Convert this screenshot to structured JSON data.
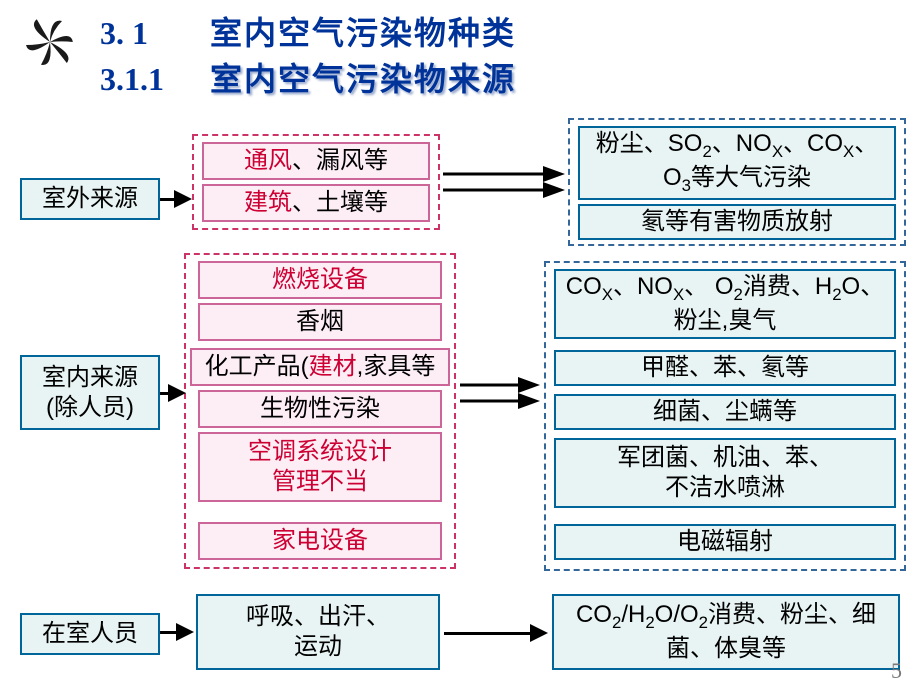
{
  "header": {
    "section_num": "3. 1",
    "title": "室内空气污染物种类",
    "sub_num": "3.1.1",
    "subtitle": "室内空气污染物来源"
  },
  "sources": {
    "outdoor": {
      "label": "室外来源"
    },
    "indoor": {
      "line1": "室内来源",
      "line2": "(除人员)"
    },
    "people": {
      "label": "在室人员"
    }
  },
  "outdoor_items": {
    "row1_red": "通风",
    "row1_rest": "、漏风等",
    "row2_red": "建筑",
    "row2_rest": "、土壤等"
  },
  "outdoor_results": {
    "row1_html": "粉尘、SO<sub>2</sub>、NO<sub>X</sub>、CO<sub>X</sub>、O<sub>3</sub>等大气污染",
    "row2": "氡等有害物质放射"
  },
  "indoor_items": {
    "r1": "燃烧设备",
    "r2": "香烟",
    "r3_pre": "化工产品(",
    "r3_red": "建材",
    "r3_post": ",家具等",
    "r4": "生物性污染",
    "r5a": "空调系统设计",
    "r5b": "管理不当",
    "r6": "家电设备"
  },
  "indoor_results": {
    "r1_html": "CO<sub>X</sub>、NO<sub>X</sub>、&nbsp;O<sub>2</sub>消费、H<sub>2</sub>O、粉尘,臭气",
    "r2": "甲醛、苯、氡等",
    "r3": "细菌、尘螨等",
    "r4a": "军团菌、机油、苯、",
    "r4b": "不洁水喷淋",
    "r5": "电磁辐射"
  },
  "people_items": {
    "line1": "呼吸、出汗、",
    "line2": "运动"
  },
  "people_results_html": "CO<sub>2</sub>/H<sub>2</sub>O/O<sub>2</sub>消费、粉尘、细菌、体臭等",
  "page_num": "5",
  "colors": {
    "source_border": "#006699",
    "source_bg": "#e8f4f4",
    "item_border_out": "#cc6699",
    "item_bg_out": "#fdeef6",
    "item_border_in": "#cc6699",
    "item_bg_in": "#fdeef6",
    "result_border": "#006699",
    "result_bg": "#e8f4f4",
    "dashed_out": "#cc3366",
    "dashed_in": "#336699"
  }
}
